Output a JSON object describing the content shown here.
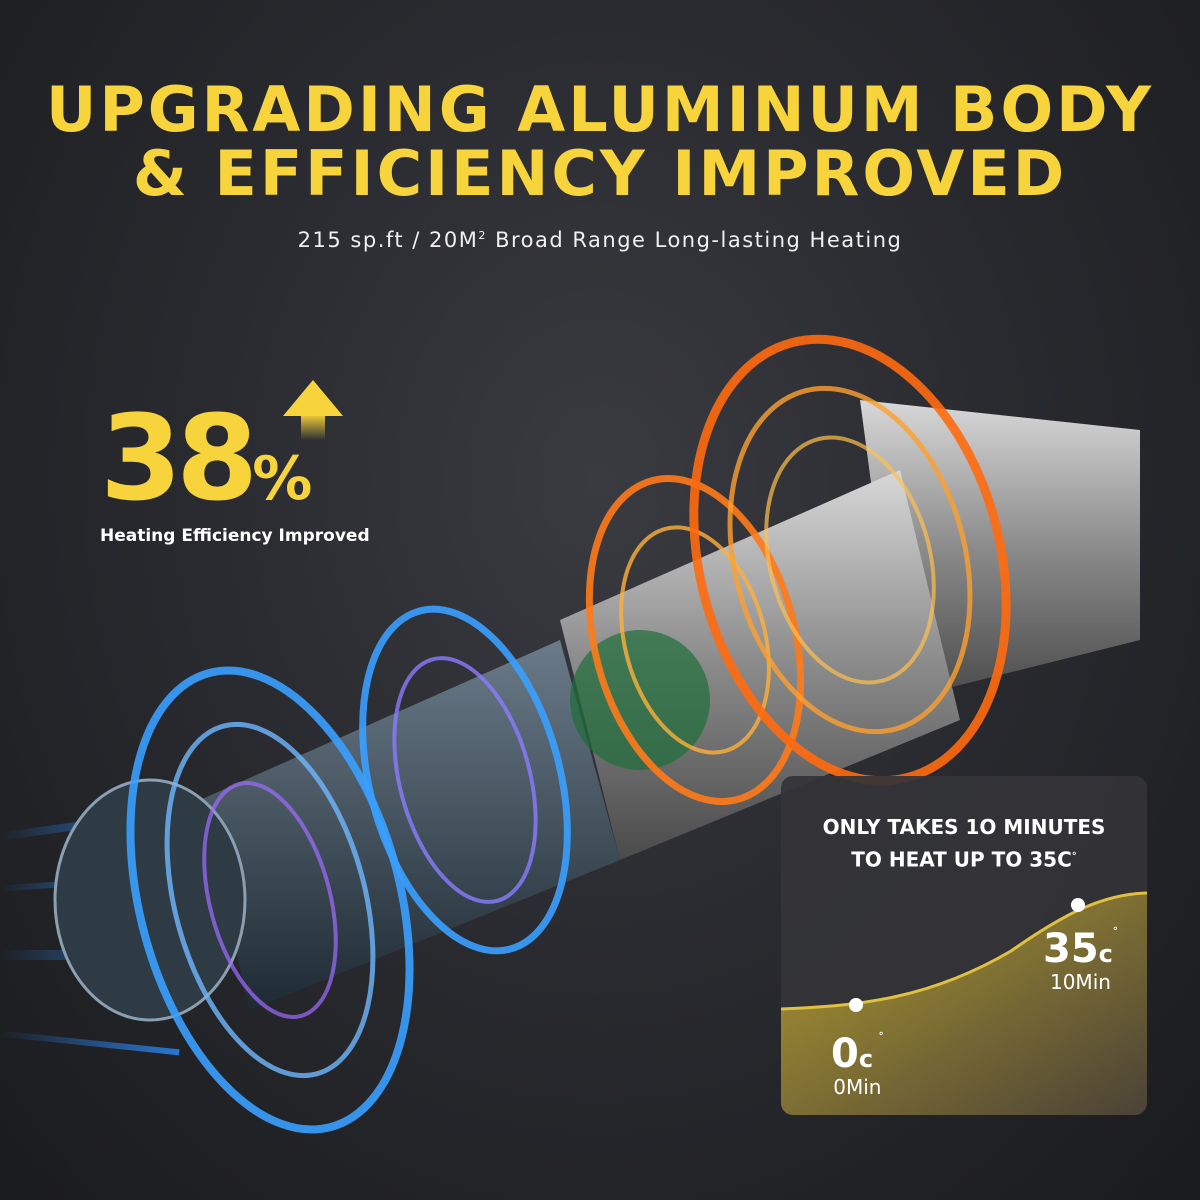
{
  "headline": {
    "line1": "UPGRADING ALUMINUM BODY",
    "line2": "& EFFICIENCY IMPROVED"
  },
  "subtitle": {
    "text": "215 sp.ft  / 20M",
    "superscript": "2",
    "rest": " Broad Range Long-lasting Heating"
  },
  "stat": {
    "value": "38",
    "unit": "%",
    "label": "Heating Efficiency Improved",
    "icon": "arrow-up-icon"
  },
  "heat_card": {
    "title_line1": "ONLY TAKES 1O MINUTES",
    "title_line2": "TO HEAT UP TO 35C",
    "title_degree": "°",
    "start": {
      "temp": "0",
      "unit": "c",
      "degree": "°",
      "time": "0Min"
    },
    "end": {
      "temp": "35",
      "unit": "c",
      "degree": "°",
      "time": "10Min"
    }
  },
  "colors": {
    "accent": "#f7d33c",
    "cold": "#3aa0ff",
    "hot": "#ff7a1a",
    "curve_fill": "#a89030"
  }
}
